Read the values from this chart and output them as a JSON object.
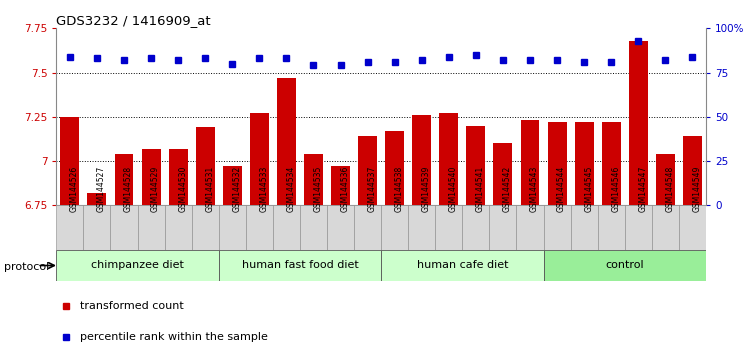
{
  "title": "GDS3232 / 1416909_at",
  "samples": [
    "GSM144526",
    "GSM144527",
    "GSM144528",
    "GSM144529",
    "GSM144530",
    "GSM144531",
    "GSM144532",
    "GSM144533",
    "GSM144534",
    "GSM144535",
    "GSM144536",
    "GSM144537",
    "GSM144538",
    "GSM144539",
    "GSM144540",
    "GSM144541",
    "GSM144542",
    "GSM144543",
    "GSM144544",
    "GSM144545",
    "GSM144546",
    "GSM144547",
    "GSM144548",
    "GSM144549"
  ],
  "red_values": [
    7.25,
    6.82,
    7.04,
    7.07,
    7.07,
    7.19,
    6.97,
    7.27,
    7.47,
    7.04,
    6.97,
    7.14,
    7.17,
    7.26,
    7.27,
    7.2,
    7.1,
    7.23,
    7.22,
    7.22,
    7.22,
    7.68,
    7.04,
    7.14
  ],
  "blue_values": [
    84,
    83,
    82,
    83,
    82,
    83,
    80,
    83,
    83,
    79,
    79,
    81,
    81,
    82,
    84,
    85,
    82,
    82,
    82,
    81,
    81,
    93,
    82,
    84
  ],
  "groups": [
    {
      "label": "chimpanzee diet",
      "start": 0,
      "end": 5,
      "color": "#ccffcc"
    },
    {
      "label": "human fast food diet",
      "start": 6,
      "end": 11,
      "color": "#ccffcc"
    },
    {
      "label": "human cafe diet",
      "start": 12,
      "end": 17,
      "color": "#ccffcc"
    },
    {
      "label": "control",
      "start": 18,
      "end": 23,
      "color": "#99ee99"
    }
  ],
  "ylim_left": [
    6.75,
    7.75
  ],
  "ymin": 6.75,
  "yticks_left": [
    6.75,
    7.0,
    7.25,
    7.5,
    7.75
  ],
  "ytick_labels_left": [
    "6.75",
    "7",
    "7.25",
    "7.5",
    "7.75"
  ],
  "ylim_right": [
    0,
    100
  ],
  "yticks_right": [
    0,
    25,
    50,
    75,
    100
  ],
  "ytick_labels_right": [
    "0",
    "25",
    "50",
    "75",
    "100%"
  ],
  "bar_color": "#cc0000",
  "dot_color": "#0000cc",
  "bar_width": 0.7,
  "xlabel_bg": "#dddddd",
  "group_border_color": "#aaaaaa"
}
